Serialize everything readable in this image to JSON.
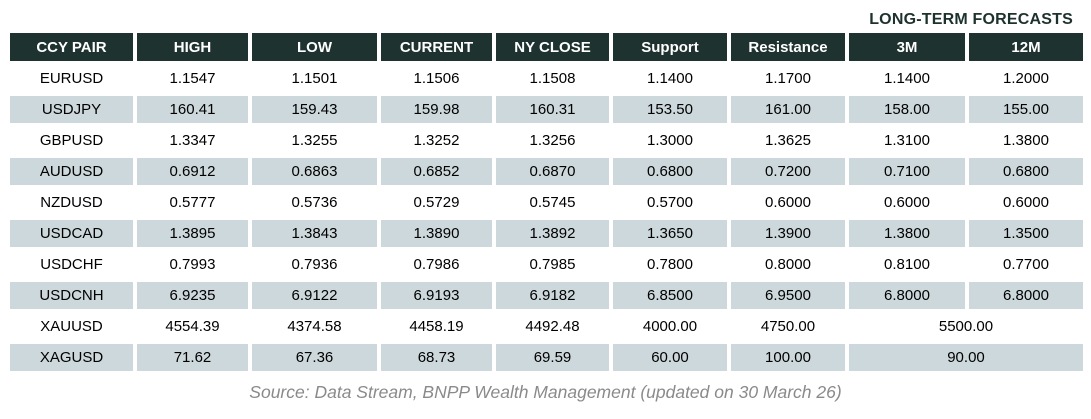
{
  "title": "LONG-TERM FORECASTS",
  "chart_data": {
    "type": "table",
    "title": "LONG-TERM FORECASTS",
    "columns": [
      "CCY PAIR",
      "HIGH",
      "LOW",
      "CURRENT",
      "NY CLOSE",
      "Support",
      "Resistance",
      "3M",
      "12M"
    ],
    "rows": [
      {
        "cells": [
          "EURUSD",
          "1.1547",
          "1.1501",
          "1.1506",
          "1.1508",
          "1.1400",
          "1.1700",
          "1.1400",
          "1.2000"
        ],
        "merge_last_two": false
      },
      {
        "cells": [
          "USDJPY",
          "160.41",
          "159.43",
          "159.98",
          "160.31",
          "153.50",
          "161.00",
          "158.00",
          "155.00"
        ],
        "merge_last_two": false
      },
      {
        "cells": [
          "GBPUSD",
          "1.3347",
          "1.3255",
          "1.3252",
          "1.3256",
          "1.3000",
          "1.3625",
          "1.3100",
          "1.3800"
        ],
        "merge_last_two": false
      },
      {
        "cells": [
          "AUDUSD",
          "0.6912",
          "0.6863",
          "0.6852",
          "0.6870",
          "0.6800",
          "0.7200",
          "0.7100",
          "0.6800"
        ],
        "merge_last_two": false
      },
      {
        "cells": [
          "NZDUSD",
          "0.5777",
          "0.5736",
          "0.5729",
          "0.5745",
          "0.5700",
          "0.6000",
          "0.6000",
          "0.6000"
        ],
        "merge_last_two": false
      },
      {
        "cells": [
          "USDCAD",
          "1.3895",
          "1.3843",
          "1.3890",
          "1.3892",
          "1.3650",
          "1.3900",
          "1.3800",
          "1.3500"
        ],
        "merge_last_two": false
      },
      {
        "cells": [
          "USDCHF",
          "0.7993",
          "0.7936",
          "0.7986",
          "0.7985",
          "0.7800",
          "0.8000",
          "0.8100",
          "0.7700"
        ],
        "merge_last_two": false
      },
      {
        "cells": [
          "USDCNH",
          "6.9235",
          "6.9122",
          "6.9193",
          "6.9182",
          "6.8500",
          "6.9500",
          "6.8000",
          "6.8000"
        ],
        "merge_last_two": false
      },
      {
        "cells": [
          "XAUUSD",
          "4554.39",
          "4374.58",
          "4458.19",
          "4492.48",
          "4000.00",
          "4750.00",
          "5500.00"
        ],
        "merge_last_two": true
      },
      {
        "cells": [
          "XAGUSD",
          "71.62",
          "67.36",
          "68.73",
          "69.59",
          "60.00",
          "100.00",
          "90.00"
        ],
        "merge_last_two": true
      }
    ],
    "merged_cells_note": [
      {
        "row": "XAUUSD",
        "spans": [
          "3M",
          "12M"
        ],
        "value": "5500.00"
      },
      {
        "row": "XAGUSD",
        "spans": [
          "3M",
          "12M"
        ],
        "value": "90.00"
      }
    ],
    "legend_position": "none",
    "grid": "cell-gaps"
  },
  "footer": "Source: Data Stream, BNPP Wealth Management (updated on 30 March 26)",
  "colors": {
    "header_bg": "#1e332f",
    "header_text": "#ffffff",
    "stripe_bg": "#cdd8dc",
    "row_bg": "#ffffff",
    "title_text": "#1d312d",
    "body_text": "#000000",
    "footer_text": "#8a8a8a"
  }
}
